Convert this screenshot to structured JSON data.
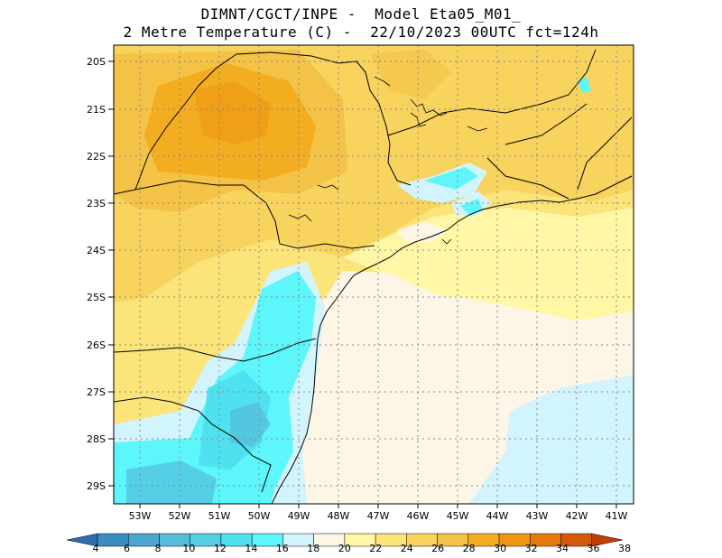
{
  "title_line1": "DIMNT/CGCT/INPE -  Model Eta05_M01_",
  "title_line2": "2 Metre Temperature (C) -  22/10/2023 00UTC fct=124h",
  "lat_labels": [
    "20S",
    "21S",
    "22S",
    "23S",
    "24S",
    "25S",
    "26S",
    "27S",
    "28S",
    "29S"
  ],
  "lon_labels": [
    "53W",
    "52W",
    "51W",
    "50W",
    "49W",
    "48W",
    "47W",
    "46W",
    "45W",
    "44W",
    "43W",
    "42W",
    "41W"
  ],
  "colorbar": {
    "labels": [
      "4",
      "6",
      "8",
      "10",
      "12",
      "14",
      "16",
      "18",
      "20",
      "22",
      "24",
      "26",
      "28",
      "30",
      "32",
      "34",
      "36",
      "38"
    ],
    "colors": [
      "#2e6db0",
      "#3a8cc0",
      "#4aa6cf",
      "#56bcdc",
      "#55cfe6",
      "#4fe1ef",
      "#5df6fb",
      "#d2f4fc",
      "#fdf6e6",
      "#fff7a6",
      "#fbe47a",
      "#f8d35e",
      "#f4c246",
      "#f2ad20",
      "#ee9612",
      "#e57b0c",
      "#d45a07",
      "#c03f03"
    ]
  },
  "legend_colors": {
    "cyan": "#5df6fb",
    "light_cyan": "#d2f4fc",
    "cream": "#fdf6e6",
    "light_yellow": "#fff7a6",
    "yellow": "#f8d35e",
    "orange": "#f2ad20"
  }
}
